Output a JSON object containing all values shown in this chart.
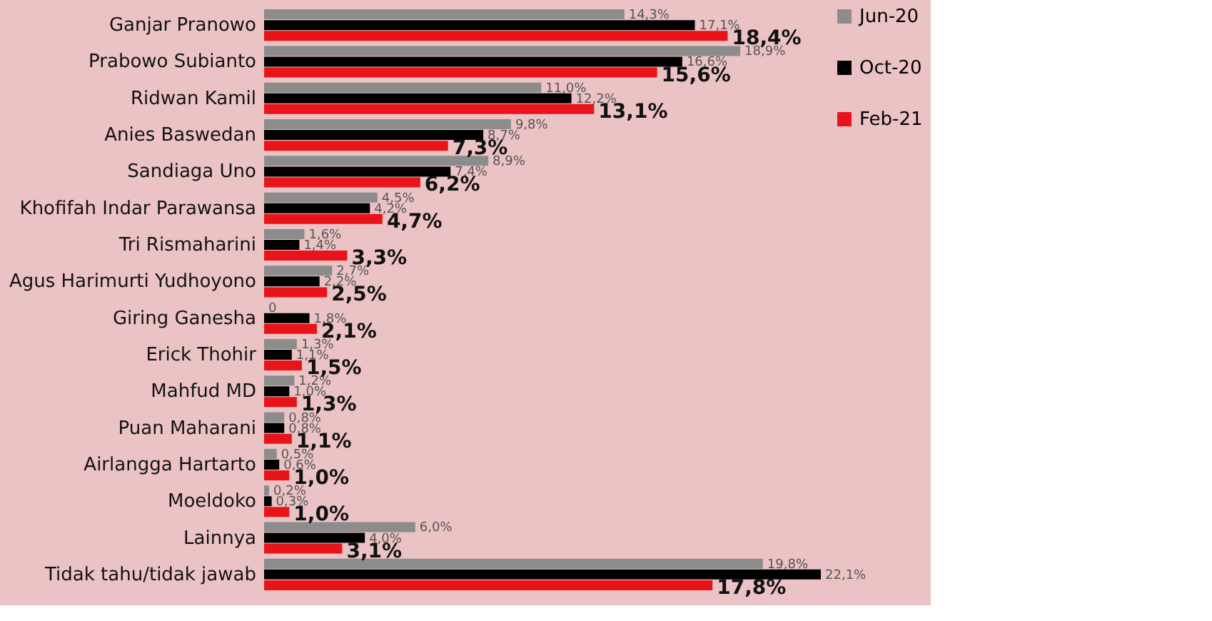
{
  "chart_data": {
    "type": "bar",
    "orientation": "horizontal",
    "categories": [
      "Ganjar Pranowo",
      "Prabowo Subianto",
      "Ridwan Kamil",
      "Anies Baswedan",
      "Sandiaga Uno",
      "Khofifah Indar Parawansa",
      "Tri Rismaharini",
      "Agus Harimurti Yudhoyono",
      "Giring Ganesha",
      "Erick Thohir",
      "Mahfud MD",
      "Puan Maharani",
      "Airlangga Hartarto",
      "Moeldoko",
      "Lainnya",
      "Tidak tahu/tidak jawab"
    ],
    "series": [
      {
        "name": "Jun-20",
        "color": "#8c8c8c",
        "values": [
          14.3,
          18.9,
          11.0,
          9.8,
          8.9,
          4.5,
          1.6,
          2.7,
          0,
          1.3,
          1.2,
          0.8,
          0.5,
          0.2,
          6.0,
          19.8
        ],
        "value_labels": [
          "14,3%",
          "18,9%",
          "11,0%",
          "9,8%",
          "8,9%",
          "4,5%",
          "1,6%",
          "2,7%",
          "0",
          "1,3%",
          "1,2%",
          "0,8%",
          "0,5%",
          "0,2%",
          "6,0%",
          "19,8%"
        ]
      },
      {
        "name": "Oct-20",
        "color": "#000000",
        "values": [
          17.1,
          16.6,
          12.2,
          8.7,
          7.4,
          4.2,
          1.4,
          2.2,
          1.8,
          1.1,
          1.0,
          0.8,
          0.6,
          0.3,
          4.0,
          22.1
        ],
        "value_labels": [
          "17,1%",
          "16,6%",
          "12,2%",
          "8,7%",
          "7,4%",
          "4,2%",
          "1,4%",
          "2,2%",
          "1,8%",
          "1,1%",
          "1,0%",
          "0,8%",
          "0,6%",
          "0,3%",
          "4,0%",
          "22,1%"
        ]
      },
      {
        "name": "Feb-21",
        "color": "#e8141a",
        "values": [
          18.4,
          15.6,
          13.1,
          7.3,
          6.2,
          4.7,
          3.3,
          2.5,
          2.1,
          1.5,
          1.3,
          1.1,
          1.0,
          1.0,
          3.1,
          17.8
        ],
        "value_labels": [
          "18,4%",
          "15,6%",
          "13,1%",
          "7,3%",
          "6,2%",
          "4,7%",
          "3,3%",
          "2,5%",
          "2,1%",
          "1,5%",
          "1,3%",
          "1,1%",
          "1,0%",
          "1,0%",
          "3,1%",
          "17,8%"
        ]
      }
    ],
    "tick_labels": "y",
    "legend": "right",
    "grid": false
  }
}
